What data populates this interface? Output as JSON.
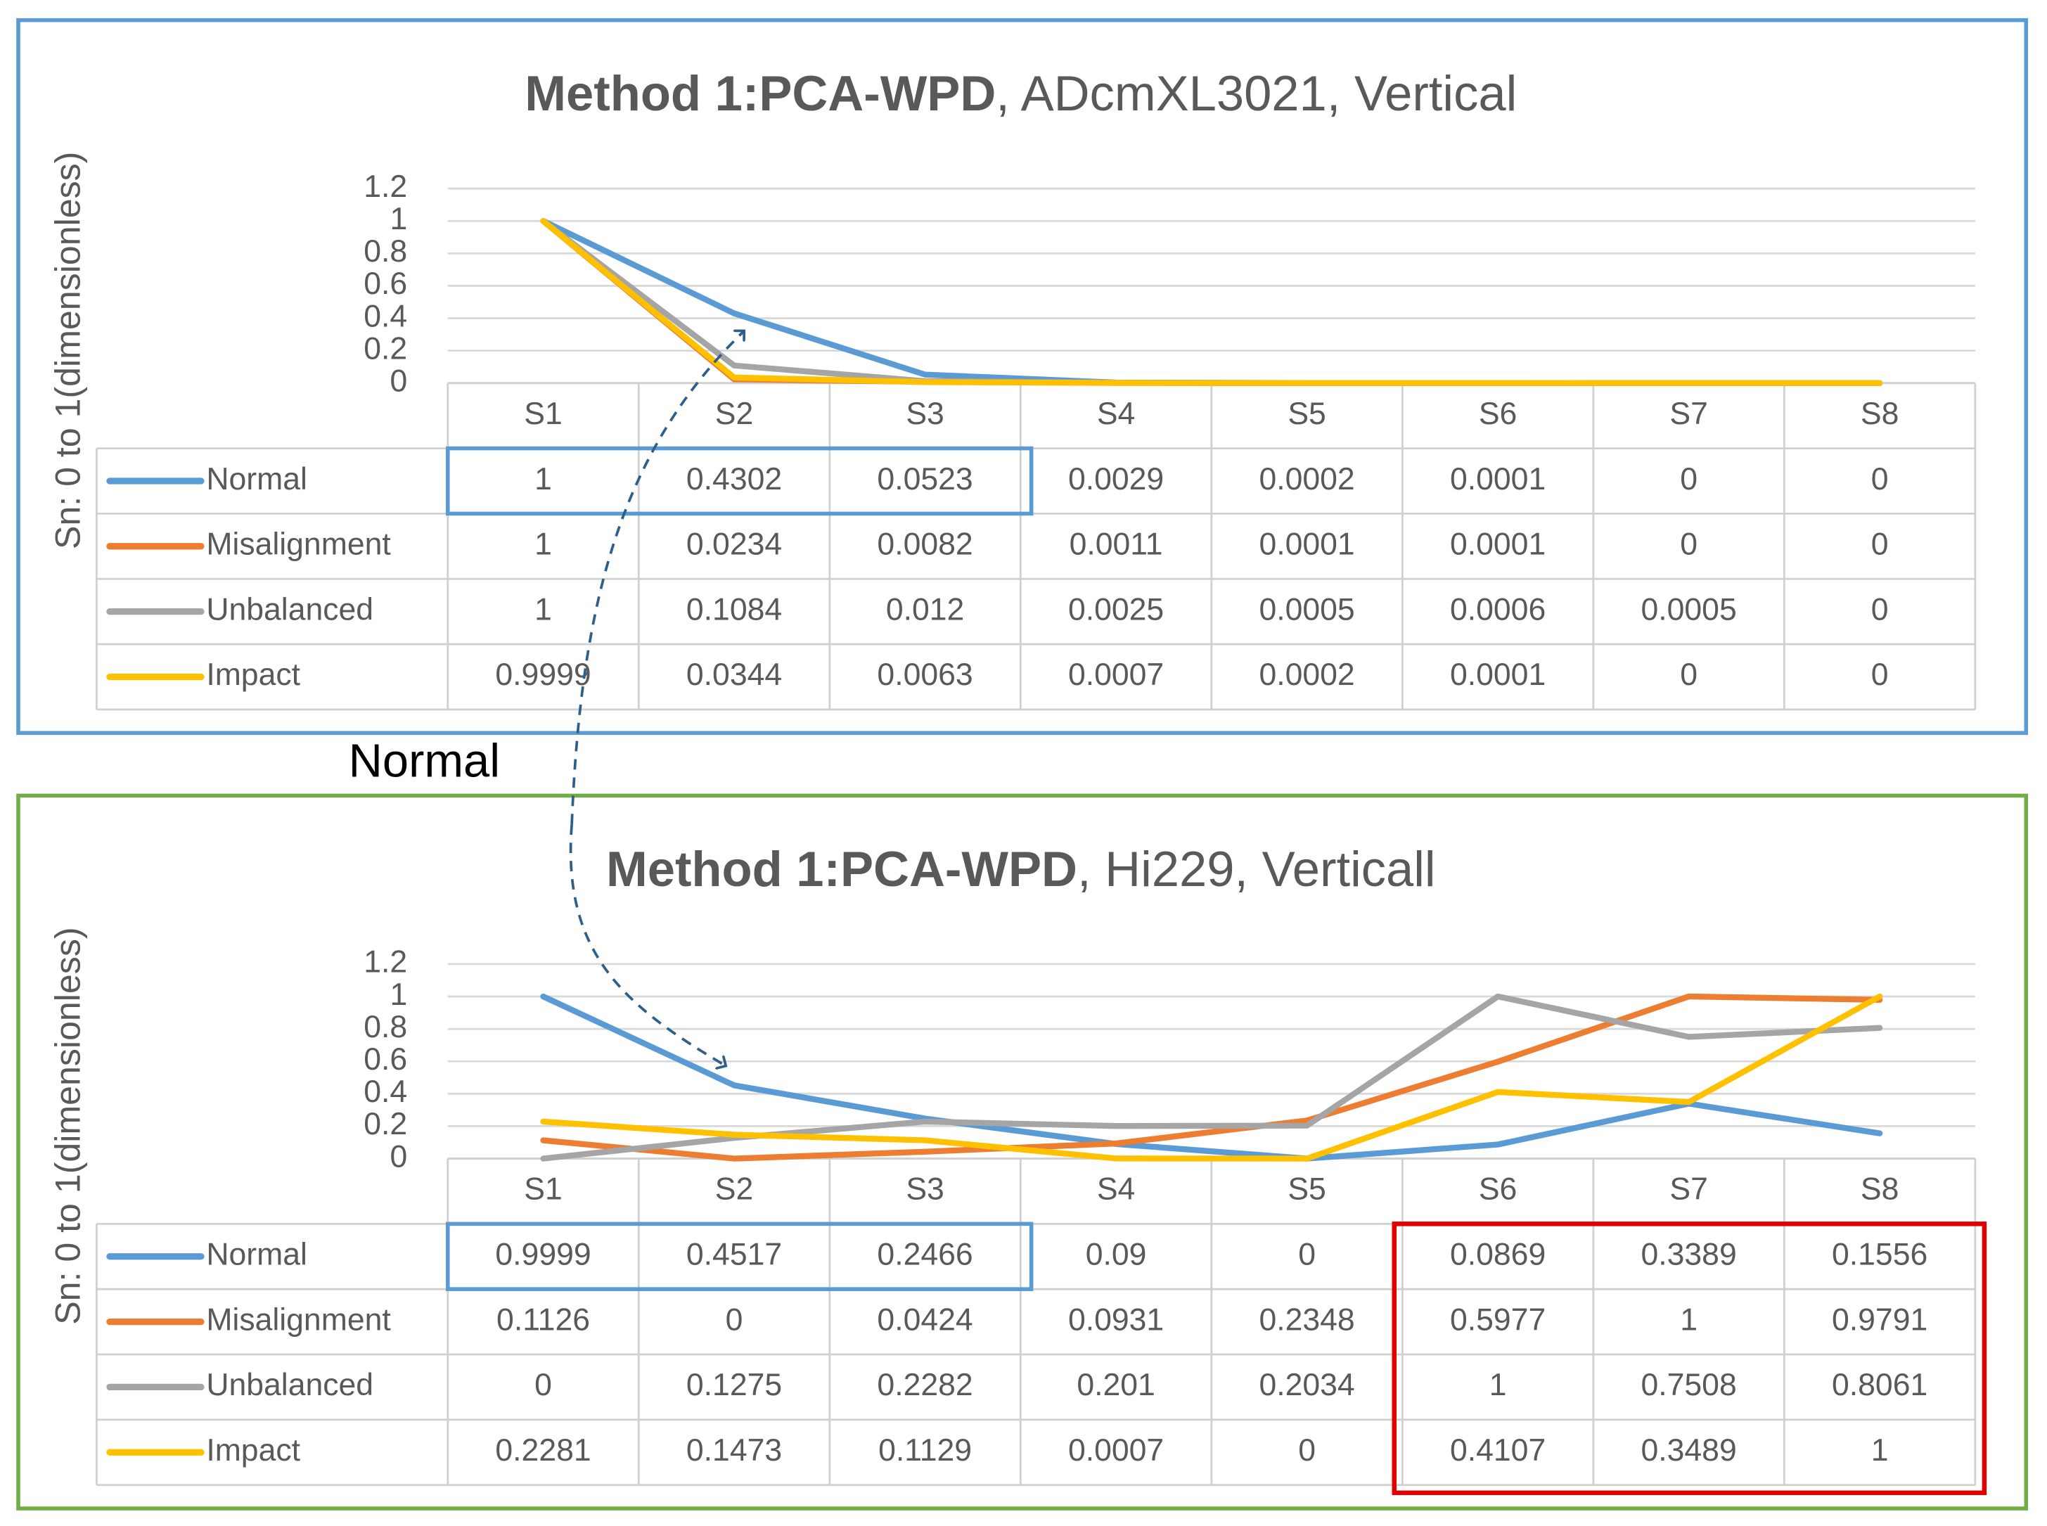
{
  "chart_data": [
    {
      "type": "line",
      "title": {
        "bold": "Method 1:PCA-WPD",
        "rest": ", ADcmXL3021, Vertical"
      },
      "ylabel": "Sn: 0  to 1(dimensionless)",
      "categories": [
        "S1",
        "S2",
        "S3",
        "S4",
        "S5",
        "S6",
        "S7",
        "S8"
      ],
      "ylim": [
        0,
        1.2
      ],
      "yticks": [
        0,
        0.2,
        0.4,
        0.6,
        0.8,
        1,
        1.2
      ],
      "grid": true,
      "frame_color": "#5b9bd5",
      "series": [
        {
          "name": "Normal",
          "color": "#5b9bd5",
          "values": [
            1,
            0.4302,
            0.0523,
            0.0029,
            0.0002,
            0.0001,
            0,
            0
          ]
        },
        {
          "name": "Misalignment",
          "color": "#ed7d31",
          "values": [
            1,
            0.0234,
            0.0082,
            0.0011,
            0.0001,
            0.0001,
            0,
            0
          ]
        },
        {
          "name": "Unbalanced",
          "color": "#a5a5a5",
          "values": [
            1,
            0.1084,
            0.012,
            0.0025,
            0.0005,
            0.0006,
            0.0005,
            0
          ]
        },
        {
          "name": "Impact",
          "color": "#ffc000",
          "values": [
            0.9999,
            0.0344,
            0.0063,
            0.0007,
            0.0002,
            0.0001,
            0,
            0
          ]
        }
      ]
    },
    {
      "type": "line",
      "title": {
        "bold": "Method 1:PCA-WPD",
        "rest": ", Hi229, Verticall"
      },
      "ylabel": "Sn: 0  to 1(dimensionless)",
      "categories": [
        "S1",
        "S2",
        "S3",
        "S4",
        "S5",
        "S6",
        "S7",
        "S8"
      ],
      "ylim": [
        0,
        1.2
      ],
      "yticks": [
        0,
        0.2,
        0.4,
        0.6,
        0.8,
        1,
        1.2
      ],
      "grid": true,
      "frame_color": "#70ad47",
      "series": [
        {
          "name": "Normal",
          "color": "#5b9bd5",
          "values": [
            0.9999,
            0.4517,
            0.2466,
            0.09,
            0,
            0.0869,
            0.3389,
            0.1556
          ]
        },
        {
          "name": "Misalignment",
          "color": "#ed7d31",
          "values": [
            0.1126,
            0,
            0.0424,
            0.0931,
            0.2348,
            0.5977,
            1,
            0.9791
          ]
        },
        {
          "name": "Unbalanced",
          "color": "#a5a5a5",
          "values": [
            0,
            0.1275,
            0.2282,
            0.201,
            0.2034,
            1,
            0.7508,
            0.8061
          ]
        },
        {
          "name": "Impact",
          "color": "#ffc000",
          "values": [
            0.2281,
            0.1473,
            0.1129,
            0.0007,
            0,
            0.4107,
            0.3489,
            1
          ]
        }
      ]
    }
  ],
  "annotations": [
    "Normal"
  ]
}
